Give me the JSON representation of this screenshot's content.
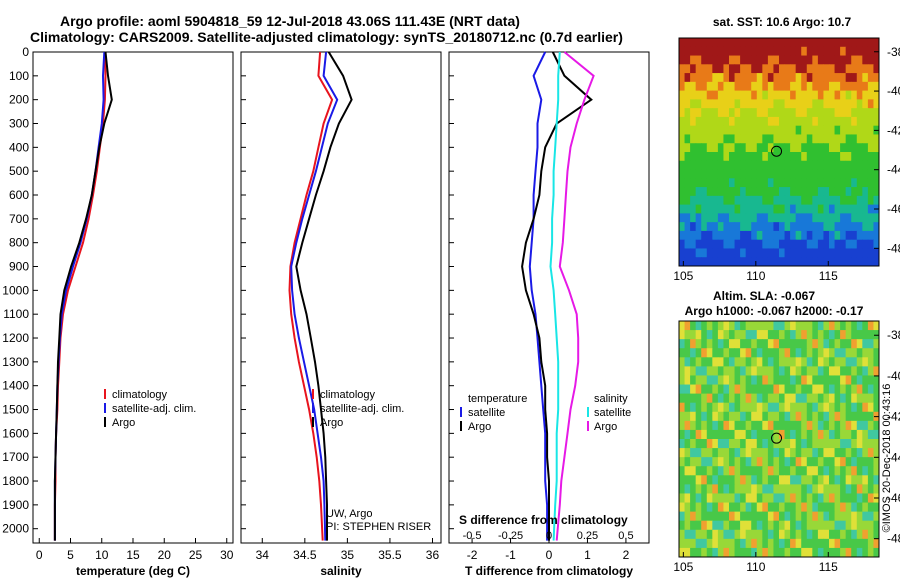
{
  "title": {
    "line1": "Argo profile: aoml 5904818_59 12-Jul-2018 43.06S 111.43E (NRT data)",
    "line2": "Climatology: CARS2009. Satellite-adjusted climatology: synTS_20180712.nc (0.7d earlier)"
  },
  "depth_ticks": [
    "0",
    "100",
    "200",
    "300",
    "400",
    "500",
    "600",
    "700",
    "800",
    "900",
    "1000",
    "1100",
    "1200",
    "1300",
    "1400",
    "1500",
    "1600",
    "1700",
    "1800",
    "1900",
    "2000"
  ],
  "colors": {
    "climatology": "#e8141e",
    "satellite": "#1a1ae6",
    "argo": "#000000",
    "sal_satellite": "#19e6e6",
    "sal_argo": "#e619e6"
  },
  "panels": {
    "temperature": {
      "xlabel": "temperature (deg C)",
      "xticks": [
        "0",
        "5",
        "10",
        "15",
        "20",
        "25",
        "30"
      ],
      "legend": [
        "climatology",
        "satellite-adj. clim.",
        "Argo"
      ]
    },
    "salinity": {
      "xlabel": "salinity",
      "xticks": [
        "34",
        "34.5",
        "35",
        "35.5",
        "36"
      ],
      "legend": [
        "climatology",
        "satellite-adj. clim.",
        "Argo"
      ],
      "credit1": "UW, Argo",
      "credit2": "PI: STEPHEN RISER"
    },
    "difference": {
      "xlabel": "T difference from climatology",
      "xticks": [
        "-2",
        "-1",
        "0",
        "1",
        "2"
      ],
      "stitle": "S difference from climatology",
      "sticks": [
        "-0.5",
        "-0.25",
        "0",
        "0.25",
        "0.5"
      ],
      "legend_t_title": "temperature",
      "legend_s_title": "salinity",
      "legend_t": [
        "satellite",
        "Argo"
      ],
      "legend_s": [
        "satellite",
        "Argo"
      ]
    }
  },
  "maps": {
    "sst": {
      "title": "sat. SST: 10.6 Argo: 10.7"
    },
    "sla": {
      "title1": "Altim. SLA: -0.067",
      "title2": "Argo h1000: -0.067 h2000: -0.17"
    },
    "yticks": [
      "-38",
      "-40",
      "-42",
      "-44",
      "-46",
      "-48"
    ],
    "xticks": [
      "105",
      "110",
      "115"
    ],
    "watermark": "©IMOS 20-Dec-2018 00:43:16"
  },
  "chart_data": [
    {
      "type": "line",
      "title": "",
      "xlabel": "temperature (deg C)",
      "ylabel": "",
      "xlim": [
        -1,
        31
      ],
      "ylim": [
        2060,
        0
      ],
      "series": [
        {
          "name": "climatology",
          "x": [
            10.5,
            10.6,
            10.5,
            10.2,
            9.7,
            9.2,
            8.6,
            7.9,
            7.0,
            5.8,
            4.6,
            3.8,
            3.4,
            3.2,
            3.0,
            2.9,
            2.7,
            2.6,
            2.6,
            2.5,
            2.5
          ],
          "y": [
            0,
            100,
            200,
            300,
            400,
            500,
            600,
            700,
            800,
            900,
            1000,
            1100,
            1200,
            1300,
            1400,
            1500,
            1600,
            1700,
            1800,
            1900,
            2050
          ]
        },
        {
          "name": "satellite-adj. clim.",
          "x": [
            10.4,
            10.2,
            10.3,
            10.0,
            9.5,
            9.0,
            8.4,
            7.6,
            6.6,
            5.4,
            4.3,
            3.6,
            3.3,
            3.1,
            2.9,
            2.8,
            2.7,
            2.6,
            2.5,
            2.5,
            2.5
          ],
          "y": [
            0,
            100,
            200,
            300,
            400,
            500,
            600,
            700,
            800,
            900,
            1000,
            1100,
            1200,
            1300,
            1400,
            1500,
            1600,
            1700,
            1800,
            1900,
            2050
          ]
        },
        {
          "name": "Argo",
          "x": [
            10.6,
            11.0,
            11.6,
            10.4,
            9.6,
            9.0,
            8.4,
            7.5,
            6.4,
            5.1,
            4.0,
            3.4,
            3.2,
            3.0,
            2.9,
            2.8,
            2.7,
            2.6,
            2.5,
            2.5,
            2.5
          ],
          "y": [
            0,
            100,
            200,
            300,
            400,
            500,
            600,
            700,
            800,
            900,
            1000,
            1100,
            1200,
            1300,
            1400,
            1500,
            1600,
            1700,
            1800,
            1900,
            2050
          ]
        }
      ]
    },
    {
      "type": "line",
      "title": "",
      "xlabel": "salinity",
      "ylabel": "",
      "xlim": [
        33.75,
        36.1
      ],
      "ylim": [
        2060,
        0
      ],
      "series": [
        {
          "name": "climatology",
          "x": [
            34.68,
            34.66,
            34.82,
            34.72,
            34.66,
            34.6,
            34.52,
            34.45,
            34.38,
            34.33,
            34.32,
            34.34,
            34.38,
            34.43,
            34.49,
            34.55,
            34.6,
            34.64,
            34.67,
            34.69,
            34.71
          ],
          "y": [
            0,
            100,
            200,
            300,
            400,
            500,
            600,
            700,
            800,
            900,
            1000,
            1100,
            1200,
            1300,
            1400,
            1500,
            1600,
            1700,
            1800,
            1900,
            2050
          ]
        },
        {
          "name": "satellite-adj. clim.",
          "x": [
            34.75,
            34.72,
            34.88,
            34.77,
            34.7,
            34.63,
            34.55,
            34.47,
            34.4,
            34.34,
            34.35,
            34.38,
            34.43,
            34.49,
            34.55,
            34.61,
            34.65,
            34.69,
            34.72,
            34.73,
            34.74
          ],
          "y": [
            0,
            100,
            200,
            300,
            400,
            500,
            600,
            700,
            800,
            900,
            1000,
            1100,
            1200,
            1300,
            1400,
            1500,
            1600,
            1700,
            1800,
            1900,
            2050
          ]
        },
        {
          "name": "Argo",
          "x": [
            34.78,
            34.95,
            35.05,
            34.9,
            34.8,
            34.72,
            34.63,
            34.55,
            34.47,
            34.4,
            34.45,
            34.52,
            34.57,
            34.62,
            34.66,
            34.69,
            34.72,
            34.74,
            34.75,
            34.76,
            34.76
          ],
          "y": [
            0,
            100,
            200,
            300,
            400,
            500,
            600,
            700,
            800,
            900,
            1000,
            1100,
            1200,
            1300,
            1400,
            1500,
            1600,
            1700,
            1800,
            1900,
            2050
          ]
        }
      ]
    },
    {
      "type": "line",
      "title": "",
      "xlabel": "T difference from climatology",
      "ylabel": "",
      "xlim": [
        -2.6,
        2.6
      ],
      "ylim": [
        2060,
        0
      ],
      "series": [
        {
          "name": "temperature satellite",
          "x": [
            -0.1,
            -0.4,
            -0.2,
            -0.3,
            -0.3,
            -0.35,
            -0.4,
            -0.4,
            -0.45,
            -0.5,
            -0.45,
            -0.35,
            -0.3,
            -0.25,
            -0.2,
            -0.15,
            -0.1,
            -0.1,
            -0.1,
            -0.05,
            -0.05
          ],
          "y": [
            0,
            100,
            200,
            300,
            400,
            500,
            600,
            700,
            800,
            900,
            1000,
            1100,
            1200,
            1300,
            1400,
            1500,
            1600,
            1700,
            1800,
            1900,
            2050
          ]
        },
        {
          "name": "temperature Argo",
          "x": [
            0.1,
            0.4,
            1.1,
            0.2,
            -0.1,
            -0.2,
            -0.25,
            -0.4,
            -0.6,
            -0.7,
            -0.6,
            -0.4,
            -0.25,
            -0.2,
            -0.1,
            -0.1,
            -0.05,
            -0.05,
            0.0,
            0.0,
            0.0
          ],
          "y": [
            0,
            100,
            200,
            300,
            400,
            500,
            600,
            700,
            800,
            900,
            1000,
            1100,
            1200,
            1300,
            1400,
            1500,
            1600,
            1700,
            1800,
            1900,
            2050
          ]
        },
        {
          "name": "salinity satellite",
          "x": [
            0.07,
            0.06,
            0.06,
            0.05,
            0.04,
            0.03,
            0.03,
            0.02,
            0.02,
            0.01,
            0.03,
            0.04,
            0.05,
            0.06,
            0.06,
            0.06,
            0.05,
            0.05,
            0.05,
            0.04,
            0.03
          ],
          "y": [
            0,
            100,
            200,
            300,
            400,
            500,
            600,
            700,
            800,
            900,
            1000,
            1100,
            1200,
            1300,
            1400,
            1500,
            1600,
            1700,
            1800,
            1900,
            2050
          ]
        },
        {
          "name": "salinity Argo",
          "x": [
            0.1,
            0.29,
            0.23,
            0.18,
            0.14,
            0.12,
            0.11,
            0.1,
            0.09,
            0.07,
            0.13,
            0.18,
            0.19,
            0.19,
            0.17,
            0.14,
            0.12,
            0.1,
            0.08,
            0.07,
            0.05
          ],
          "y": [
            0,
            100,
            200,
            300,
            400,
            500,
            600,
            700,
            800,
            900,
            1000,
            1100,
            1200,
            1300,
            1400,
            1500,
            1600,
            1700,
            1800,
            1900,
            2050
          ]
        }
      ]
    }
  ]
}
